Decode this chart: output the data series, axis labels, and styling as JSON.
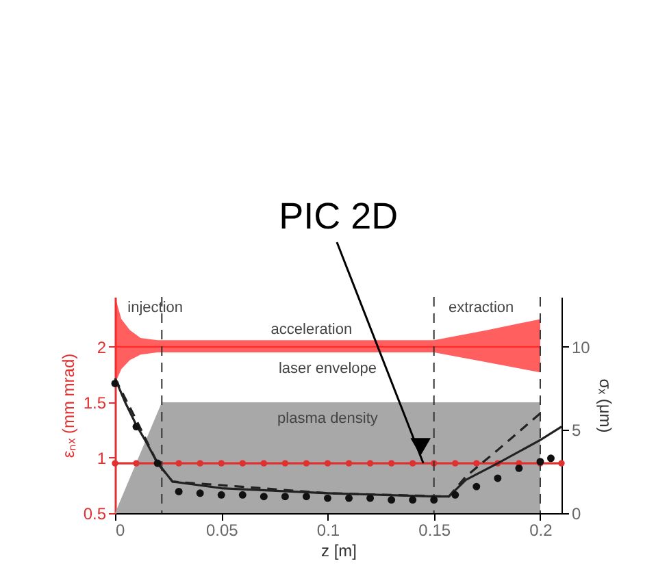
{
  "chart_data": {
    "type": "line",
    "xlabel": "z [m]",
    "ylabel": "εₙₓ (mm mrad)",
    "y2label": "σₓ (μm)",
    "xlim": [
      0,
      0.21
    ],
    "xticks": [
      0,
      0.05,
      0.1,
      0.15,
      0.2
    ],
    "ylim": [
      0.5,
      2.45
    ],
    "yticks": [
      0.5,
      1,
      1.5,
      2
    ],
    "y2lim": [
      0,
      13
    ],
    "y2ticks": [
      0,
      5,
      10
    ],
    "series": [
      {
        "name": "plasma density",
        "type": "area",
        "color": "#a8a8a8",
        "x": [
          0,
          0.022,
          0.2
        ],
        "values": [
          0.5,
          1.5,
          1.5
        ]
      },
      {
        "name": "laser envelope",
        "color": "#ff2a2a",
        "marker": "none",
        "line_style": "solid",
        "x": [
          0,
          0.003,
          0.007,
          0.012,
          0.02,
          0.15,
          0.175,
          0.2
        ],
        "values": [
          2,
          2,
          2,
          2,
          2,
          2,
          2,
          2
        ],
        "upper": [
          2.45,
          2.25,
          2.15,
          2.08,
          2.06,
          2.06,
          2.15,
          2.25
        ],
        "lower": [
          1.67,
          1.8,
          1.88,
          1.93,
          1.95,
          1.95,
          1.86,
          1.77
        ]
      },
      {
        "color": "#e03030",
        "marker": "circle",
        "line_style": "solid",
        "x": [
          0,
          0.01,
          0.02,
          0.03,
          0.04,
          0.05,
          0.06,
          0.07,
          0.08,
          0.09,
          0.1,
          0.11,
          0.12,
          0.13,
          0.14,
          0.15,
          0.16,
          0.17,
          0.18,
          0.19,
          0.2,
          0.21
        ],
        "values": [
          0.95,
          0.95,
          0.95,
          0.95,
          0.95,
          0.95,
          0.95,
          0.95,
          0.95,
          0.95,
          0.95,
          0.95,
          0.95,
          0.95,
          0.95,
          0.95,
          0.95,
          0.95,
          0.95,
          0.95,
          0.95,
          0.95
        ]
      },
      {
        "axis": "y2",
        "color": "#222222",
        "marker": "none",
        "line_style": "solid",
        "x": [
          0,
          0.005,
          0.01,
          0.015,
          0.02,
          0.022,
          0.027,
          0.05,
          0.1,
          0.15,
          0.157,
          0.165,
          0.18,
          0.2,
          0.21
        ],
        "values": [
          8.1,
          6.6,
          5.3,
          4.2,
          3.0,
          2.7,
          1.9,
          1.5,
          1.2,
          1.0,
          1.0,
          2.0,
          3.0,
          4.4,
          5.2
        ]
      },
      {
        "axis": "y2",
        "color": "#222222",
        "marker": "none",
        "line_style": "dashed",
        "x": [
          0,
          0.01,
          0.02,
          0.027,
          0.1,
          0.157,
          0.165,
          0.18,
          0.2
        ],
        "values": [
          8.1,
          5.6,
          3.0,
          1.9,
          1.2,
          1.0,
          2.2,
          3.8,
          6.0
        ]
      },
      {
        "type": "scatter",
        "axis": "y2",
        "color": "#111111",
        "marker": "circle",
        "x": [
          0,
          0.01,
          0.02,
          0.03,
          0.04,
          0.05,
          0.06,
          0.07,
          0.08,
          0.09,
          0.1,
          0.11,
          0.12,
          0.13,
          0.14,
          0.15,
          0.16,
          0.17,
          0.18,
          0.19,
          0.2,
          0.205
        ],
        "values": [
          7.8,
          5.2,
          3.0,
          1.3,
          1.2,
          1.1,
          1.1,
          1.0,
          1.0,
          1.0,
          0.9,
          0.9,
          0.9,
          0.8,
          0.8,
          0.8,
          1.1,
          1.6,
          2.1,
          2.7,
          3.1,
          3.3
        ]
      }
    ],
    "ref_lines": [
      {
        "axis": "x",
        "value": 0.022,
        "line_style": "dashed",
        "color": "#333333"
      },
      {
        "axis": "x",
        "value": 0.15,
        "line_style": "dashed",
        "color": "#333333"
      },
      {
        "axis": "x",
        "value": 0.2,
        "line_style": "dashed",
        "color": "#333333"
      }
    ],
    "annotations": [
      "injection",
      "extraction",
      "acceleration",
      {
        "text": "PIC 2D",
        "x": 0.145,
        "y": 0.95
      }
    ]
  }
}
